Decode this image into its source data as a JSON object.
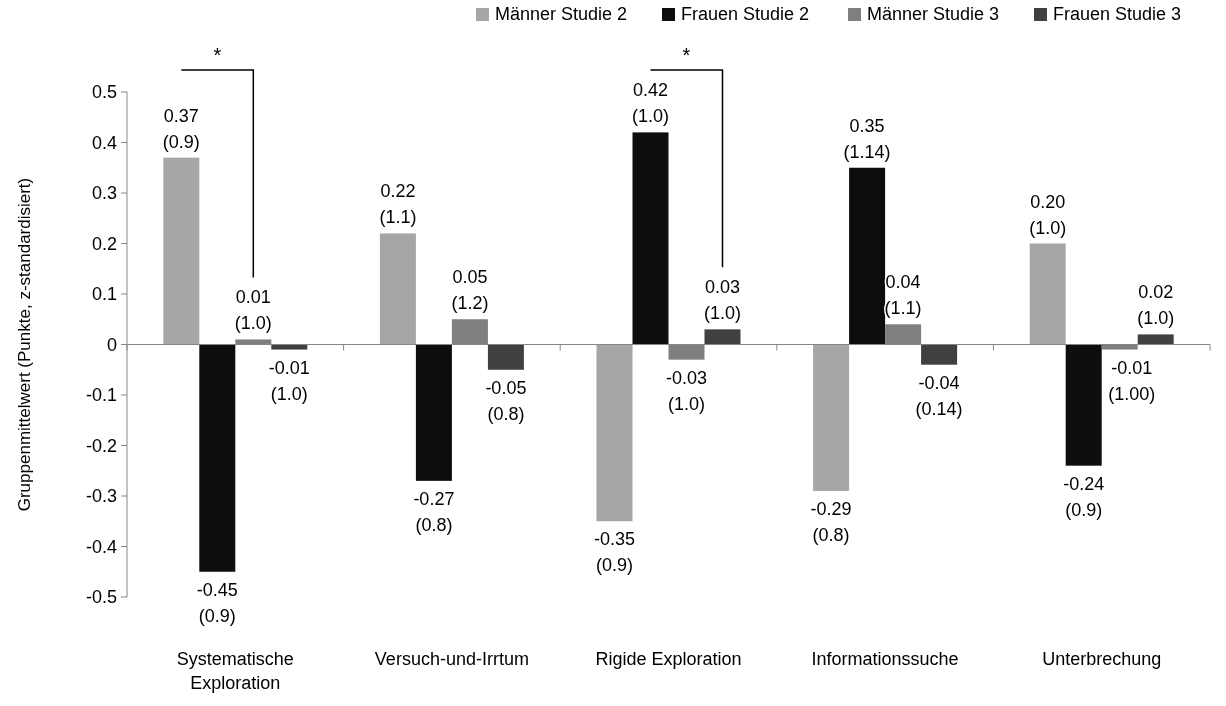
{
  "chart_data": {
    "type": "bar",
    "ylabel": "Gruppenmittelwert (Punkte, z-standardisiert)",
    "categories": [
      "Systematische Exploration",
      "Versuch-und-Irrtum",
      "Rigide Exploration",
      "Informationssuche",
      "Unterbrechung"
    ],
    "series": [
      {
        "name": "Männer Studie 2",
        "color": "#a6a6a6",
        "values": [
          0.37,
          0.22,
          -0.35,
          -0.29,
          0.2
        ],
        "value_labels": [
          "0.37\n(0.9)",
          "0.22\n(1.1)",
          "-0.35\n(0.9)",
          "-0.29\n(0.8)",
          "0.20\n(1.0)"
        ]
      },
      {
        "name": "Frauen Studie 2",
        "color": "#0d0d0d",
        "values": [
          -0.45,
          -0.27,
          0.42,
          0.35,
          -0.24
        ],
        "value_labels": [
          "-0.45\n(0.9)",
          "-0.27\n(0.8)",
          "0.42\n(1.0)",
          "0.35\n(1.14)",
          "-0.24\n(0.9)"
        ]
      },
      {
        "name": "Männer Studie 3",
        "color": "#7f7f7f",
        "values": [
          0.01,
          0.05,
          -0.03,
          0.04,
          -0.01
        ],
        "value_labels": [
          "0.01\n(1.0)",
          "0.05\n(1.2)",
          "-0.03\n(1.0)",
          "0.04\n(1.1)",
          "-0.01\n(1.00)"
        ]
      },
      {
        "name": "Frauen Studie 3",
        "color": "#404040",
        "values": [
          -0.01,
          -0.05,
          0.03,
          -0.04,
          0.02
        ],
        "value_labels": [
          "-0.01\n(1.0)",
          "-0.05\n(0.8)",
          "0.03\n(1.0)",
          "-0.04\n(0.14)",
          "0.02\n(1.0)"
        ]
      }
    ],
    "ylim": [
      -0.5,
      0.5
    ],
    "yticks": [
      -0.5,
      -0.4,
      -0.3,
      -0.2,
      -0.1,
      0,
      0.1,
      0.2,
      0.3,
      0.4,
      0.5
    ],
    "legend": "top",
    "annotations": [
      "*",
      "*"
    ]
  }
}
